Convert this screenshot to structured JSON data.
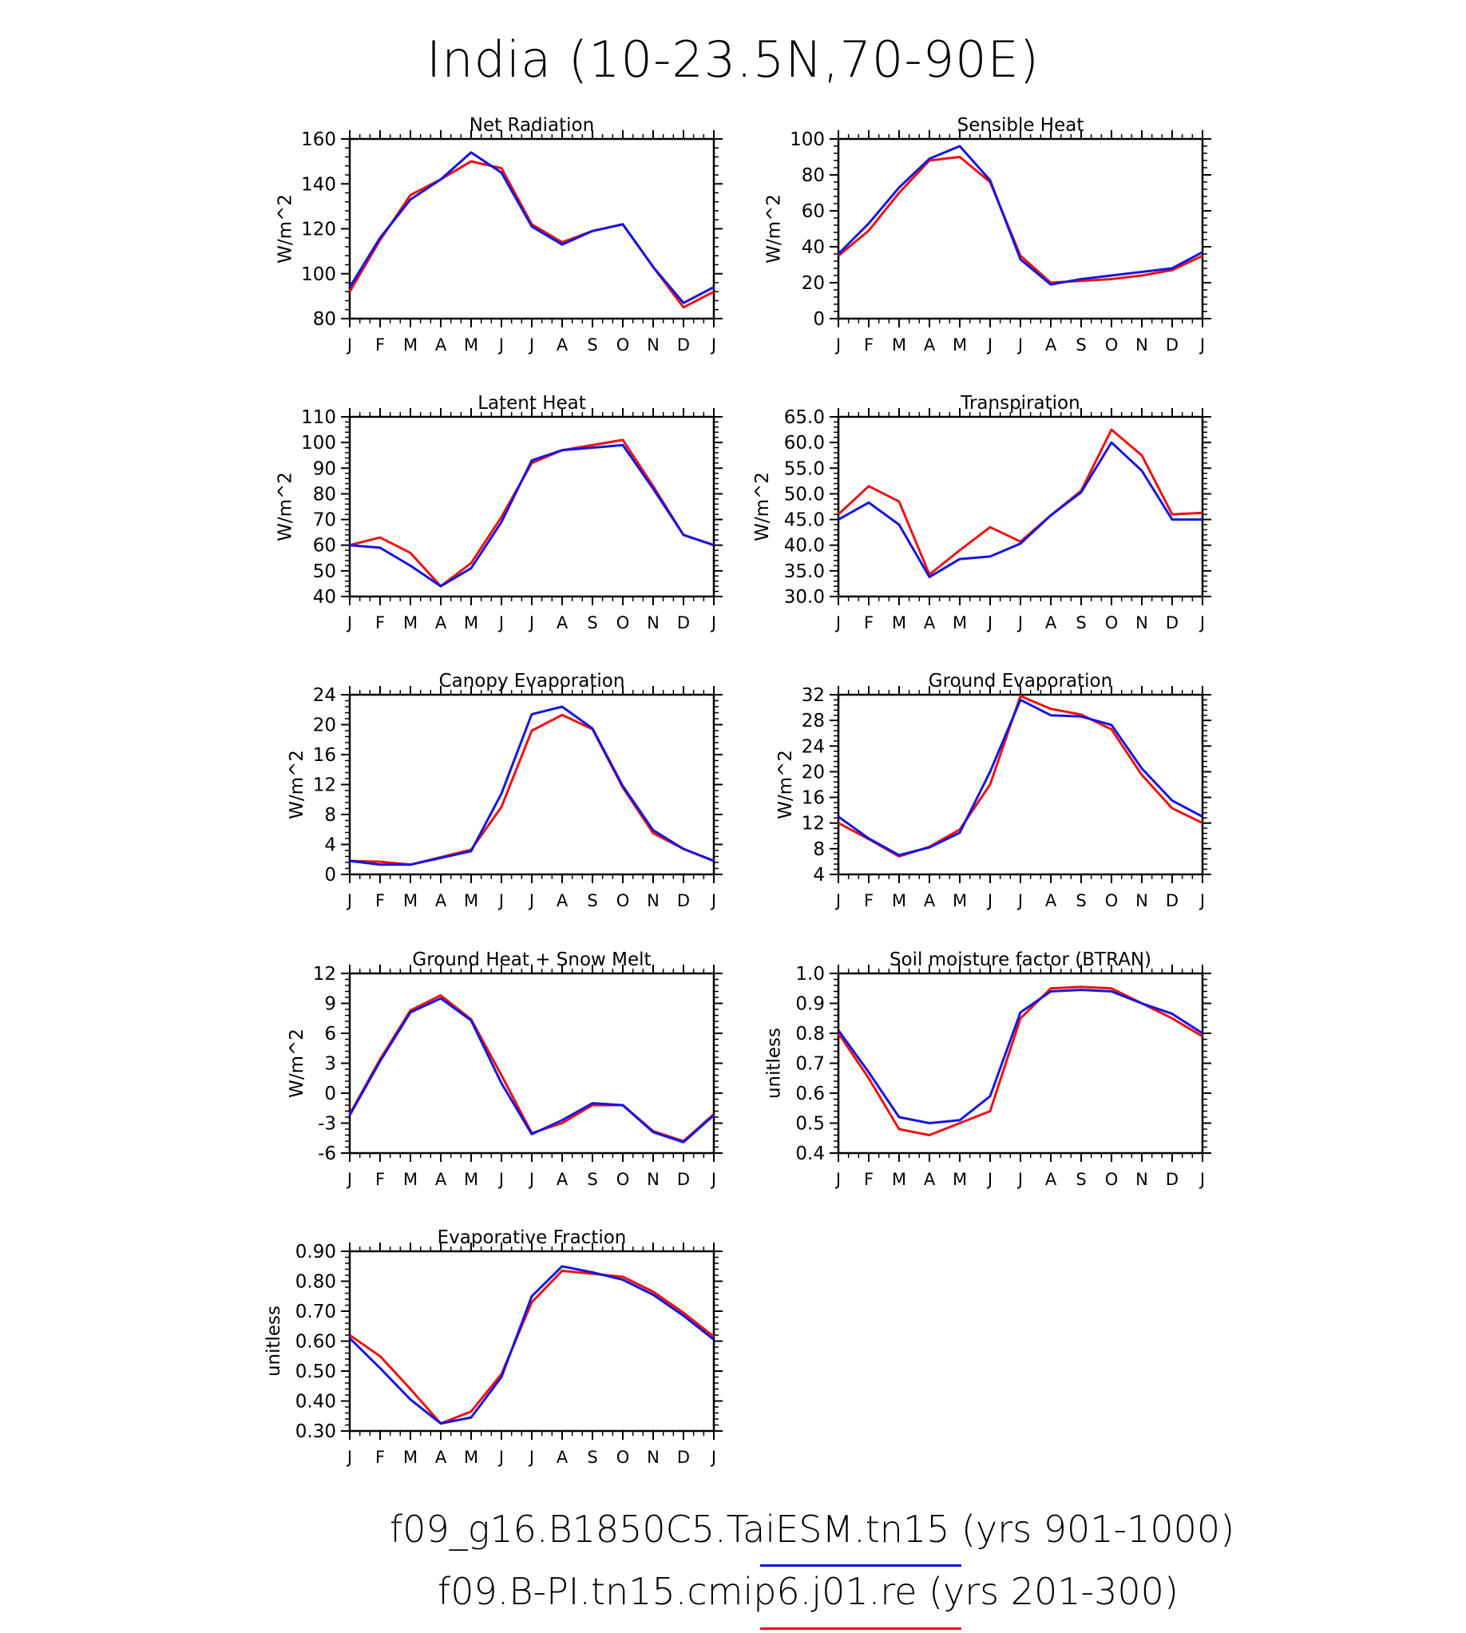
{
  "title": "India (10-23.5N,70-90E)",
  "months": [
    "J",
    "F",
    "M",
    "A",
    "M",
    "J",
    "J",
    "A",
    "S",
    "O",
    "N",
    "D",
    "J"
  ],
  "colors": {
    "case1": "#1515e0",
    "case2": "#ee1111"
  },
  "legend": [
    {
      "label": "f09_g16.B1850C5.TaiESM.tn15 (yrs 901-1000)",
      "color": "#1515e0"
    },
    {
      "label": "f09.B-PI.tn15.cmip6.j01.re (yrs 201-300)",
      "color": "#ee1111"
    }
  ],
  "chart_data": [
    {
      "type": "line",
      "title": "Net Radiation",
      "ylabel": "W/m^2",
      "ylim": [
        80,
        160
      ],
      "yticks": [
        "80",
        "100",
        "120",
        "140",
        "160"
      ],
      "series": [
        {
          "values": [
            94,
            116,
            133,
            142,
            154,
            145,
            121,
            113,
            119,
            122,
            103,
            87,
            94
          ]
        },
        {
          "values": [
            92,
            115,
            135,
            142,
            150,
            147,
            122,
            114,
            119,
            122,
            103,
            85,
            92
          ]
        }
      ]
    },
    {
      "type": "line",
      "title": "Sensible Heat",
      "ylabel": "W/m^2",
      "ylim": [
        0,
        100
      ],
      "yticks": [
        "0",
        "20",
        "40",
        "60",
        "80",
        "100"
      ],
      "series": [
        {
          "values": [
            36,
            53,
            73,
            89,
            96,
            77,
            33,
            19,
            22,
            24,
            26,
            28,
            37
          ]
        },
        {
          "values": [
            35,
            49,
            70,
            88,
            90,
            76,
            35,
            20,
            21,
            22,
            24,
            27,
            35
          ]
        }
      ]
    },
    {
      "type": "line",
      "title": "Latent Heat",
      "ylabel": "W/m^2",
      "ylim": [
        40,
        110
      ],
      "yticks": [
        "40",
        "50",
        "60",
        "70",
        "80",
        "90",
        "100",
        "110"
      ],
      "series": [
        {
          "values": [
            60,
            59,
            52,
            44,
            51,
            69,
            93,
            97,
            98,
            99,
            82,
            64,
            60
          ]
        },
        {
          "values": [
            60,
            63,
            57,
            44,
            53,
            71,
            92,
            97,
            99,
            101,
            83,
            64,
            60
          ]
        }
      ]
    },
    {
      "type": "line",
      "title": "Transpiration",
      "ylabel": "W/m^2",
      "ylim": [
        30,
        65
      ],
      "yticks": [
        "30.0",
        "35.0",
        "40.0",
        "45.0",
        "50.0",
        "55.0",
        "60.0",
        "65.0"
      ],
      "series": [
        {
          "values": [
            45,
            48.3,
            44,
            33.8,
            37.3,
            37.8,
            40.3,
            45.8,
            50.3,
            60,
            54.5,
            45,
            45
          ]
        },
        {
          "values": [
            46,
            51.5,
            48.5,
            34.3,
            39,
            43.5,
            40.7,
            45.8,
            50.6,
            62.5,
            57.5,
            46,
            46.3
          ]
        }
      ]
    },
    {
      "type": "line",
      "title": "Canopy Evaporation",
      "ylabel": "W/m^2",
      "ylim": [
        0,
        24
      ],
      "yticks": [
        "0",
        "4",
        "8",
        "12",
        "16",
        "20",
        "24"
      ],
      "series": [
        {
          "values": [
            1.8,
            1.3,
            1.3,
            2.2,
            3.1,
            10.8,
            21.4,
            22.4,
            19.5,
            11.8,
            5.9,
            3.4,
            1.8
          ]
        },
        {
          "values": [
            1.8,
            1.7,
            1.3,
            2.3,
            3.3,
            9,
            19.2,
            21.3,
            19.4,
            11.6,
            5.5,
            3.4,
            1.8
          ]
        }
      ]
    },
    {
      "type": "line",
      "title": "Ground Evaporation",
      "ylabel": "W/m^2",
      "ylim": [
        4,
        32
      ],
      "yticks": [
        "4",
        "8",
        "12",
        "16",
        "20",
        "24",
        "28",
        "32"
      ],
      "series": [
        {
          "values": [
            13,
            9.6,
            7,
            8.2,
            10.5,
            20,
            31.2,
            28.8,
            28.6,
            27.3,
            20.5,
            15.5,
            13
          ]
        },
        {
          "values": [
            12,
            9.5,
            6.8,
            8.3,
            11,
            18,
            31.8,
            29.8,
            28.9,
            26.6,
            19.5,
            14.3,
            12
          ]
        }
      ]
    },
    {
      "type": "line",
      "title": "Ground Heat + Snow Melt",
      "ylabel": "W/m^2",
      "ylim": [
        -6,
        12
      ],
      "yticks": [
        "-6",
        "-3",
        "0",
        "3",
        "6",
        "9",
        "12"
      ],
      "series": [
        {
          "values": [
            -2.2,
            3.2,
            8.1,
            9.5,
            7.3,
            1,
            -4.1,
            -2.7,
            -1,
            -1.2,
            -3.9,
            -4.9,
            -2.2
          ]
        },
        {
          "values": [
            -2.1,
            3.4,
            8.3,
            9.8,
            7.4,
            1.8,
            -4,
            -3,
            -1.2,
            -1.2,
            -3.8,
            -4.8,
            -2.1
          ]
        }
      ]
    },
    {
      "type": "line",
      "title": "Soil moisture factor (BTRAN)",
      "ylabel": "unitless",
      "ylim": [
        0.4,
        1.0
      ],
      "yticks": [
        "0.4",
        "0.5",
        "0.6",
        "0.7",
        "0.8",
        "0.9",
        "1.0"
      ],
      "series": [
        {
          "values": [
            0.81,
            0.67,
            0.52,
            0.5,
            0.51,
            0.59,
            0.87,
            0.94,
            0.945,
            0.94,
            0.9,
            0.865,
            0.8
          ]
        },
        {
          "values": [
            0.8,
            0.65,
            0.48,
            0.46,
            0.5,
            0.54,
            0.85,
            0.95,
            0.955,
            0.95,
            0.9,
            0.85,
            0.79
          ]
        }
      ]
    },
    {
      "type": "line",
      "title": "Evaporative Fraction",
      "ylabel": "unitless",
      "ylim": [
        0.3,
        0.9
      ],
      "yticks": [
        "0.30",
        "0.40",
        "0.50",
        "0.60",
        "0.70",
        "0.80",
        "0.90"
      ],
      "series": [
        {
          "values": [
            0.61,
            0.51,
            0.405,
            0.325,
            0.345,
            0.48,
            0.75,
            0.85,
            0.83,
            0.805,
            0.755,
            0.685,
            0.605
          ]
        },
        {
          "values": [
            0.62,
            0.55,
            0.44,
            0.325,
            0.365,
            0.49,
            0.73,
            0.835,
            0.825,
            0.815,
            0.765,
            0.695,
            0.615
          ]
        }
      ]
    }
  ]
}
